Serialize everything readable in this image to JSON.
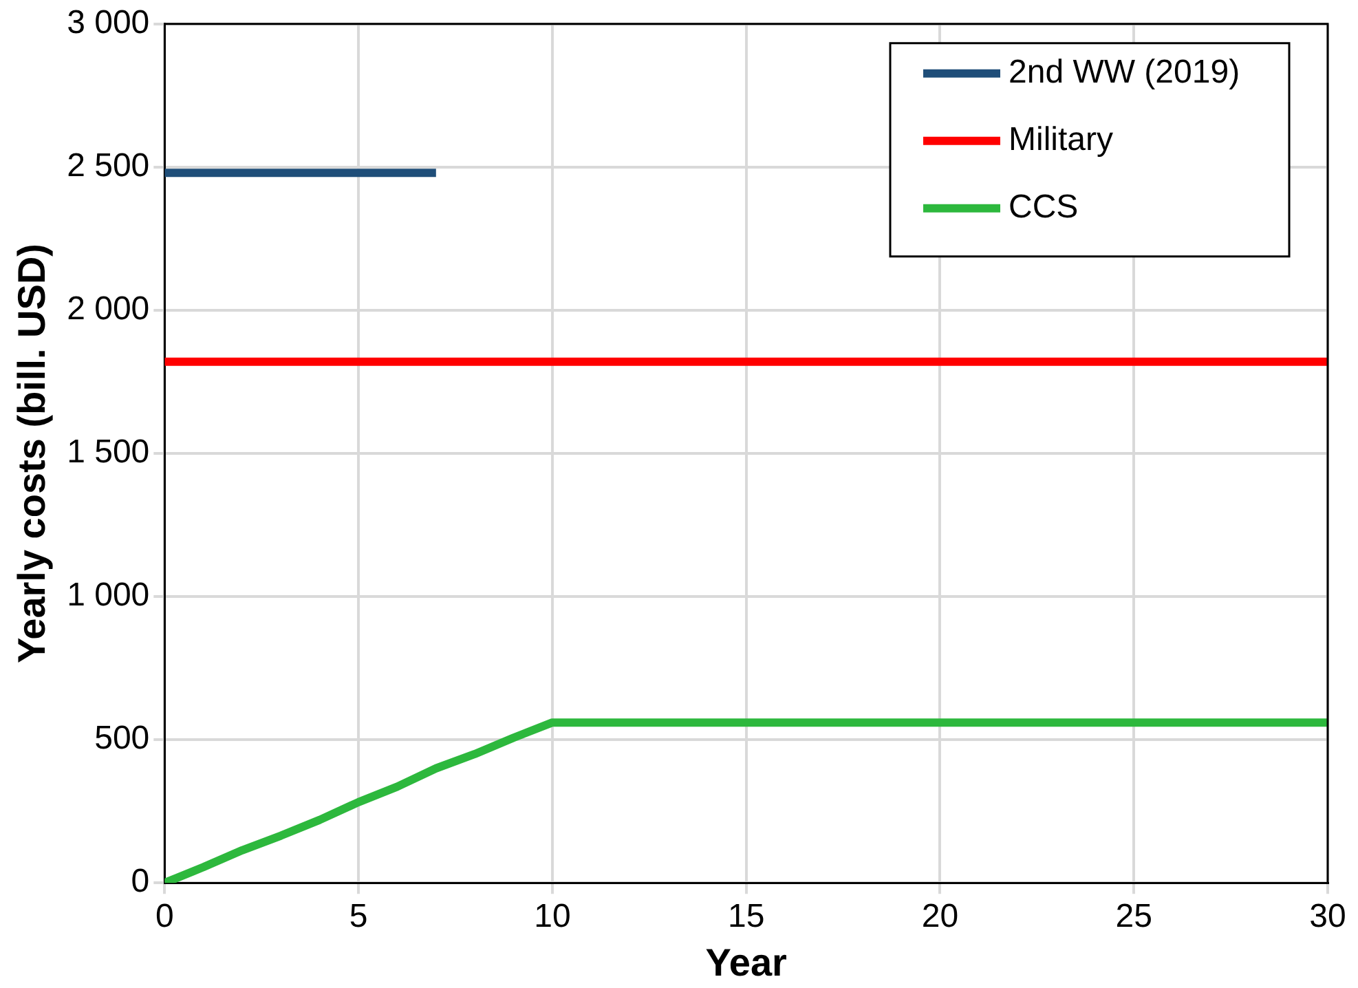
{
  "chart_data": {
    "type": "line",
    "xlabel": "Year",
    "ylabel": "Yearly costs (bill. USD)",
    "xlim": [
      0,
      30
    ],
    "xticks": [
      0,
      5,
      10,
      15,
      20,
      25,
      30
    ],
    "ylim": [
      0,
      3000
    ],
    "yticks": [
      0,
      500,
      {
        "value": 1000,
        "label": "1 000"
      },
      {
        "value": 1500,
        "label": "1 500"
      },
      {
        "value": 2000,
        "label": "2 000"
      },
      {
        "value": 2500,
        "label": "2 500"
      },
      {
        "value": 3000,
        "label": "3 000"
      }
    ],
    "grid": true,
    "legend": "top right",
    "marker": "none",
    "line_style": "solid",
    "series": [
      {
        "name": "2nd WW (2019)",
        "color": "#1f4e79",
        "x": [
          0,
          7
        ],
        "values": [
          2480,
          2480
        ]
      },
      {
        "name": "Military",
        "color": "#ff0000",
        "x": [
          0,
          30
        ],
        "values": [
          1820,
          1820
        ]
      },
      {
        "name": "CCS",
        "color": "#2db83d",
        "x": [
          0,
          1,
          2,
          3,
          4,
          5,
          6,
          7,
          8,
          9,
          10,
          30
        ],
        "values": [
          0,
          55,
          114,
          165,
          220,
          282,
          336,
          400,
          450,
          507,
          560,
          560
        ]
      }
    ]
  }
}
